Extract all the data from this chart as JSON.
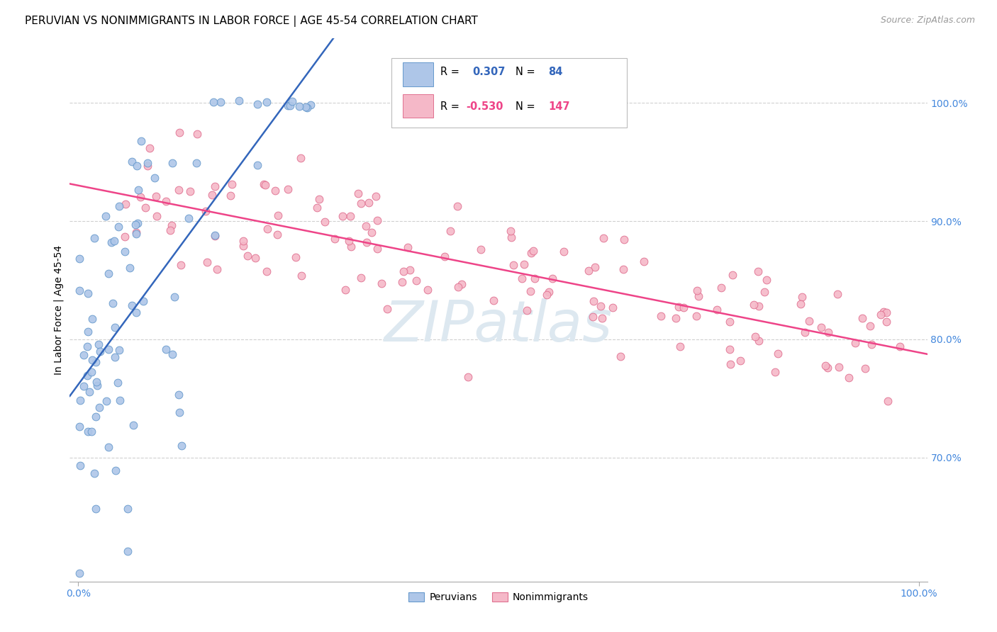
{
  "title": "PERUVIAN VS NONIMMIGRANTS IN LABOR FORCE | AGE 45-54 CORRELATION CHART",
  "source": "Source: ZipAtlas.com",
  "ylabel": "In Labor Force | Age 45-54",
  "peruvian_color": "#aec6e8",
  "nonimmigrant_color": "#f5b8c8",
  "peruvian_edge_color": "#6699cc",
  "nonimmigrant_edge_color": "#e07090",
  "blue_line_color": "#3366bb",
  "pink_line_color": "#ee4488",
  "r_peruvian": 0.307,
  "n_peruvian": 84,
  "r_nonimmigrant": -0.53,
  "n_nonimmigrant": 147,
  "r_blue_color": "#3366bb",
  "r_pink_color": "#ee4488",
  "n_blue_color": "#3366bb",
  "n_pink_color": "#ee4488",
  "background_color": "#ffffff",
  "grid_color": "#d0d0d0",
  "watermark_color": "#dde8f0",
  "tick_color": "#4488dd",
  "yticks": [
    0.7,
    0.8,
    0.9,
    1.0
  ],
  "ytick_labels": [
    "70.0%",
    "80.0%",
    "90.0%",
    "100.0%"
  ],
  "xlim": [
    -0.01,
    1.01
  ],
  "ylim": [
    0.595,
    1.055
  ],
  "peruvian_xlim": [
    0.0,
    0.3
  ],
  "nonimmigrant_xlim": [
    0.05,
    1.0
  ]
}
